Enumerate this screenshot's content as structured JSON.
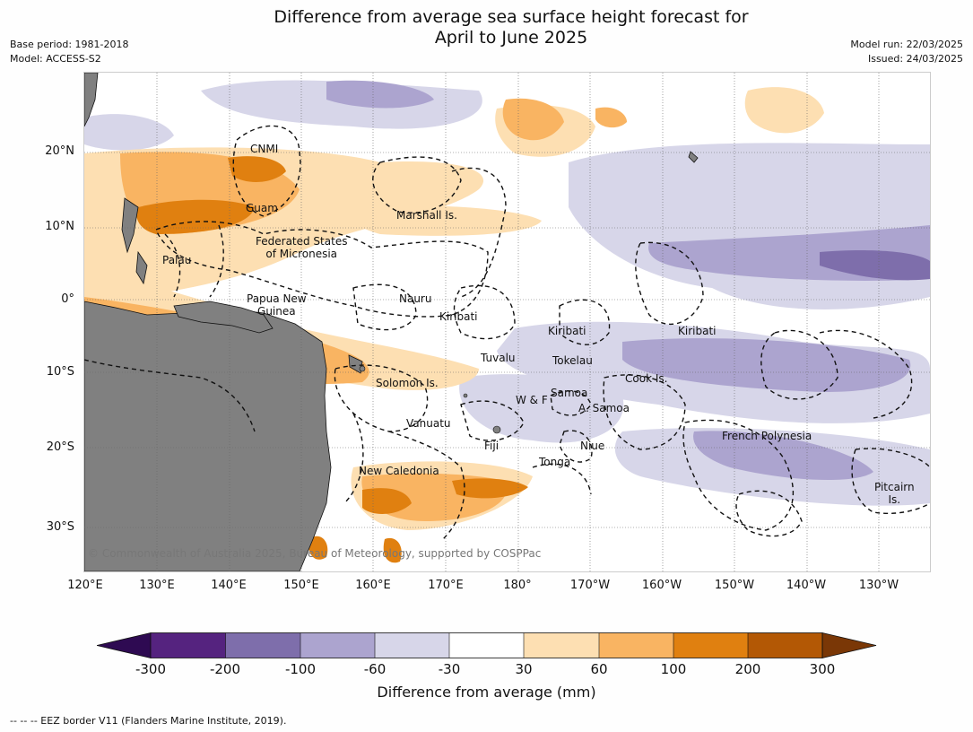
{
  "title_line1": "Difference from average sea surface height forecast for",
  "title_line2": "April to June 2025",
  "meta_left": {
    "base_period": "Base period: 1981-2018",
    "model": "Model: ACCESS-S2"
  },
  "meta_right": {
    "model_run": "Model run: 22/03/2025",
    "issued": "Issued: 24/03/2025"
  },
  "lat_labels": [
    "20°N",
    "10°N",
    "0°",
    "10°S",
    "20°S",
    "30°S"
  ],
  "lon_labels": [
    "120°E",
    "130°E",
    "140°E",
    "150°E",
    "160°E",
    "170°E",
    "180°",
    "170°W",
    "160°W",
    "150°W",
    "140°W",
    "130°W"
  ],
  "places": {
    "cnmi": "CNMI",
    "guam": "Guam",
    "marshall": "Marshall Is.",
    "fsm_1": "Federated States",
    "fsm_2": "of Micronesia",
    "palau": "Palau",
    "png_1": "Papua New",
    "png_2": "Guinea",
    "nauru": "Nauru",
    "kiribati_w": "Kiribati",
    "kiribati_c": "Kiribati",
    "kiribati_e": "Kiribati",
    "tuvalu": "Tuvalu",
    "tokelau": "Tokelau",
    "cook": "Cook Is.",
    "solomon": "Solomon Is.",
    "samoa": "Samoa",
    "wf": "W & F",
    "asamoa": "A. Samoa",
    "vanuatu": "Vanuatu",
    "fiji": "Fiji",
    "niue": "Niue",
    "tonga": "Tonga",
    "french_polynesia": "French Polynesia",
    "new_caledonia": "New Caledonia",
    "pitcairn_1": "Pitcairn",
    "pitcairn_2": "Is."
  },
  "copyright": "© Commonwealth of Australia 2025, Bureau of Meteorology, supported by COSPPac",
  "colorbar": {
    "ticks": [
      "-300",
      "-200",
      "-100",
      "-60",
      "-30",
      "30",
      "60",
      "100",
      "200",
      "300"
    ],
    "colors": [
      "#2e0a52",
      "#55237f",
      "#7e6eab",
      "#aca4cf",
      "#d7d6e9",
      "#ffffff",
      "#fddfb2",
      "#f9b462",
      "#e08010",
      "#b35805",
      "#7a3706"
    ],
    "label": "Difference from average (mm)"
  },
  "legend_note": "--  --  -- EEZ border V11 (Flanders Marine Institute, 2019)."
}
